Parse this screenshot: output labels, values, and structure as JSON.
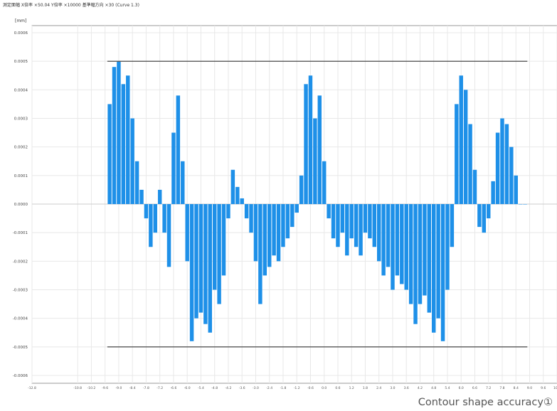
{
  "header_text": "測定面幅 X倍率 ×50.04 Y倍率 ×10000 基準幅方向 ×30 (Curve 1.3)",
  "caption": "Contour shape accuracy①",
  "colors": {
    "bars": "#1e90e8",
    "limits": "#555555",
    "grid": "#e8e8e8",
    "frame": "#999999"
  },
  "chart_data": {
    "type": "bar",
    "unit_label": "[mm]",
    "ylim": [
      -0.0006,
      0.0006
    ],
    "xlim": [
      -12.8,
      10.2
    ],
    "grid": true,
    "upper_limit": 0.0005,
    "lower_limit": -0.0005,
    "y_ticks": [
      "0.0006",
      "0.0005",
      "0.0004",
      "0.0003",
      "0.0002",
      "0.0001",
      "0.0000",
      "-0.0001",
      "-0.0002",
      "-0.0003",
      "-0.0004",
      "-0.0005",
      "-0.0006"
    ],
    "x_ticks": [
      "-12.8",
      "-10.8",
      "-10.2",
      "-9.6",
      "-9.0",
      "-8.4",
      "-7.8",
      "-7.2",
      "-6.6",
      "-6.0",
      "-5.4",
      "-4.8",
      "-4.2",
      "-3.6",
      "-3.0",
      "-2.4",
      "-1.8",
      "-1.2",
      "-0.6",
      "0.0",
      "0.6",
      "1.2",
      "1.8",
      "2.4",
      "3.0",
      "3.6",
      "4.2",
      "4.8",
      "5.4",
      "6.0",
      "6.6",
      "7.2",
      "7.8",
      "8.4",
      "9.0",
      "9.6",
      "10.2"
    ],
    "x": [
      -9.4,
      -9.2,
      -9.0,
      -8.8,
      -8.6,
      -8.4,
      -8.2,
      -8.0,
      -7.8,
      -7.6,
      -7.4,
      -7.2,
      -7.0,
      -6.8,
      -6.6,
      -6.4,
      -6.2,
      -6.0,
      -5.8,
      -5.6,
      -5.4,
      -5.2,
      -5.0,
      -4.8,
      -4.6,
      -4.4,
      -4.2,
      -4.0,
      -3.8,
      -3.6,
      -3.4,
      -3.2,
      -3.0,
      -2.8,
      -2.6,
      -2.4,
      -2.2,
      -2.0,
      -1.8,
      -1.6,
      -1.4,
      -1.2,
      -1.0,
      -0.8,
      -0.6,
      -0.4,
      -0.2,
      0.0,
      0.2,
      0.4,
      0.6,
      0.8,
      1.0,
      1.2,
      1.4,
      1.6,
      1.8,
      2.0,
      2.2,
      2.4,
      2.6,
      2.8,
      3.0,
      3.2,
      3.4,
      3.6,
      3.8,
      4.0,
      4.2,
      4.4,
      4.6,
      4.8,
      5.0,
      5.2,
      5.4,
      5.6,
      5.8,
      6.0,
      6.2,
      6.4,
      6.6,
      6.8,
      7.0,
      7.2,
      7.4,
      7.6,
      7.8,
      8.0,
      8.2,
      8.4,
      8.6,
      8.8
    ],
    "values": [
      0.00035,
      0.00048,
      0.0005,
      0.00042,
      0.00045,
      0.0003,
      0.00015,
      5e-05,
      -5e-05,
      -0.00015,
      -0.0001,
      5e-05,
      -0.0001,
      -0.00022,
      0.00025,
      0.00038,
      0.00015,
      -0.0002,
      -0.00048,
      -0.0004,
      -0.00038,
      -0.00042,
      -0.00045,
      -0.0003,
      -0.00035,
      -0.00025,
      -5e-05,
      0.00012,
      6e-05,
      2e-05,
      -5e-05,
      -0.0001,
      -0.0002,
      -0.00035,
      -0.00025,
      -0.00022,
      -0.00018,
      -0.0002,
      -0.00015,
      -0.00012,
      -8e-05,
      -3e-05,
      0.0001,
      0.00042,
      0.00045,
      0.0003,
      0.00038,
      0.00015,
      -5e-05,
      -0.00012,
      -0.00015,
      -0.0001,
      -0.00018,
      -0.00012,
      -0.00015,
      -0.00018,
      -0.0001,
      -0.00012,
      -0.00015,
      -0.0002,
      -0.00025,
      -0.00022,
      -0.0003,
      -0.00025,
      -0.00028,
      -0.0003,
      -0.00035,
      -0.00042,
      -0.00035,
      -0.00032,
      -0.00038,
      -0.00045,
      -0.0004,
      -0.00048,
      -0.0003,
      -0.00015,
      0.00035,
      0.00045,
      0.0004,
      0.00028,
      0.00012,
      -8e-05,
      -0.0001,
      -5e-05,
      8e-05,
      0.00025,
      0.0003,
      0.00028,
      0.0002,
      0.0001,
      0.0,
      0.0
    ]
  }
}
